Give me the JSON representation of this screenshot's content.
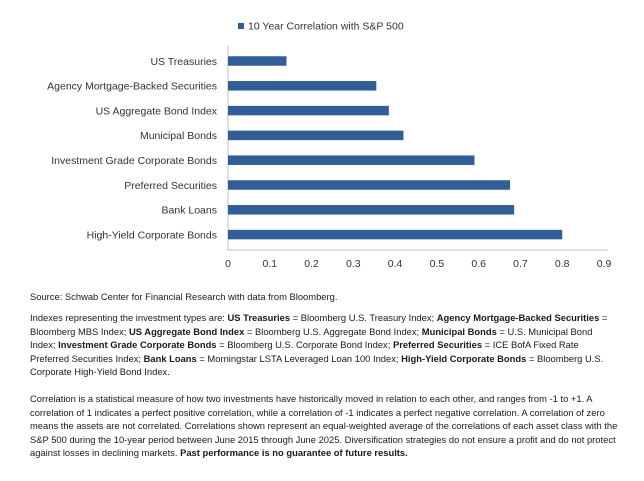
{
  "chart_data": {
    "type": "bar",
    "orientation": "horizontal",
    "legend": {
      "label": "10 Year Correlation with S&P 500",
      "placement": "top"
    },
    "categories": [
      "US Treasuries",
      "Agency Mortgage-Backed Securities",
      "US Aggregate Bond Index",
      "Municipal Bonds",
      "Investment Grade Corporate Bonds",
      "Preferred Securities",
      "Bank Loans",
      "High-Yield Corporate Bonds"
    ],
    "series": [
      {
        "name": "10 Year Correlation with S&P 500",
        "values": [
          0.14,
          0.355,
          0.385,
          0.42,
          0.59,
          0.675,
          0.685,
          0.8
        ]
      }
    ],
    "xlim": [
      0,
      0.9
    ],
    "xticks": [
      "0",
      "0.1",
      "0.2",
      "0.3",
      "0.4",
      "0.5",
      "0.6",
      "0.7",
      "0.8",
      "0.9"
    ],
    "grid": false,
    "color": "#2f5e99"
  },
  "notes": {
    "source": "Source: Schwab Center for Financial Research with data from Bloomberg.",
    "indexes_intro": "Indexes representing the investment types are: ",
    "indexes": [
      {
        "name": "US Treasuries",
        "index": "Bloomberg U.S. Treasury Index"
      },
      {
        "name": "Agency Mortgage-Backed Securities",
        "index": "Bloomberg MBS Index"
      },
      {
        "name": "US Aggregate Bond Index",
        "index": "Bloomberg U.S. Aggregate Bond Index"
      },
      {
        "name": "Municipal Bonds",
        "index": "U.S. Municipal Bond Index"
      },
      {
        "name": "Investment Grade Corporate Bonds",
        "index": "Bloomberg U.S. Corporate Bond Index"
      },
      {
        "name": "Preferred Securities",
        "index": "ICE BofA Fixed Rate Preferred Securities Index"
      },
      {
        "name": "Bank Loans",
        "index": "Morningstar LSTA Leveraged Loan 100 Index"
      },
      {
        "name": "High-Yield Corporate Bonds",
        "index": "Bloomberg U.S. Corporate High-Yield Bond Index."
      }
    ],
    "correlation_text": "Correlation is a statistical measure of how two investments have historically moved in relation to each other, and ranges from -1 to +1. A correlation of 1 indicates a perfect positive correlation, while a correlation of -1 indicates a perfect negative correlation. A correlation of zero means the assets are not correlated. Correlations shown represent an equal-weighted average of the correlations of each asset class with the S&P 500 during the 10-year period between June 2015 through June 2025. Diversification strategies do not ensure a profit and do not protect against losses in declining markets. ",
    "disclaimer": "Past performance is no guarantee of future results."
  }
}
